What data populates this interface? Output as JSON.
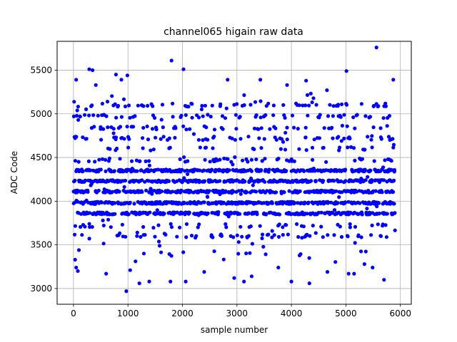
{
  "chart_data": {
    "type": "scatter",
    "title": "channel065 higain raw data",
    "xlabel": "sample number",
    "ylabel": "ADC Code",
    "xlim": [
      -300,
      6200
    ],
    "ylim": [
      2820,
      5830
    ],
    "x_ticks": [
      0,
      1000,
      2000,
      3000,
      4000,
      5000,
      6000
    ],
    "y_ticks": [
      3000,
      3500,
      4000,
      4500,
      5000,
      5500
    ],
    "grid": true,
    "marker_color": "#0000ff",
    "n_points": 5900,
    "series": [
      {
        "values_note_hidden": true,
        "points": [
          [
            50,
            5390
          ],
          [
            80,
            3200
          ],
          [
            50,
            3240
          ],
          [
            30,
            3330
          ],
          [
            100,
            3440
          ],
          [
            290,
            5510
          ],
          [
            350,
            5500
          ],
          [
            410,
            5330
          ],
          [
            780,
            5450
          ],
          [
            880,
            5390
          ],
          [
            990,
            5440
          ],
          [
            1800,
            5610
          ],
          [
            2020,
            5510
          ],
          [
            2830,
            5390
          ],
          [
            3430,
            5390
          ],
          [
            3920,
            5330
          ],
          [
            4270,
            5380
          ],
          [
            5010,
            5490
          ],
          [
            5560,
            5760
          ],
          [
            5870,
            5390
          ],
          [
            970,
            2970
          ],
          [
            1210,
            3060
          ],
          [
            1390,
            3080
          ],
          [
            1780,
            3080
          ],
          [
            2060,
            3080
          ],
          [
            3130,
            3080
          ],
          [
            3270,
            3140
          ],
          [
            4000,
            3080
          ],
          [
            4330,
            3060
          ],
          [
            5050,
            3170
          ],
          [
            5150,
            3170
          ],
          [
            5490,
            3240
          ],
          [
            5700,
            3100
          ],
          [
            2400,
            3190
          ],
          [
            1040,
            3210
          ],
          [
            3760,
            3240
          ],
          [
            4660,
            3190
          ],
          [
            2950,
            3120
          ],
          [
            600,
            3170
          ],
          [
            5340,
            3280
          ]
        ]
      }
    ]
  }
}
